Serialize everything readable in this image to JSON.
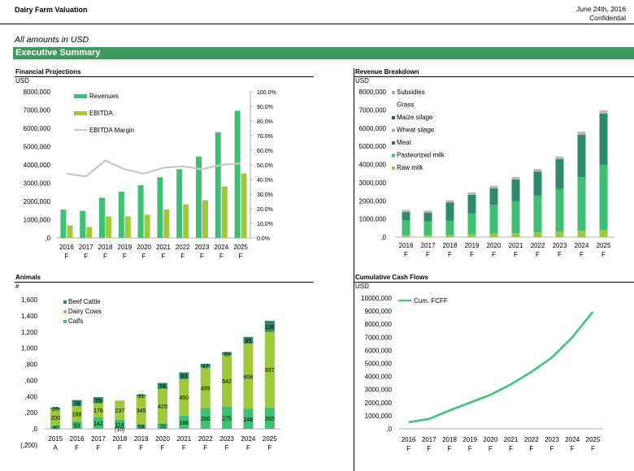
{
  "header": {
    "title": "Dairy Farm Valuation",
    "date": "June 24th, 2016",
    "confidential": "Confidential",
    "units_note": "All amounts in USD",
    "section": "Executive Summary"
  },
  "colors": {
    "green": "#3fbf73",
    "lime": "#9ec93c",
    "dark": "#2e8b6a",
    "grey": "#c8c8c8",
    "banner": "#3c9a5f",
    "line": "#4cc382"
  },
  "chart_data": [
    {
      "id": "financial",
      "type": "bar",
      "title": "Financial Projections",
      "ylabel": "USD",
      "categories": [
        "2016 F",
        "2017 F",
        "2018 F",
        "2019 F",
        "2020 F",
        "2021 F",
        "2022 F",
        "2023 F",
        "2024 F",
        "2025 F"
      ],
      "series": [
        {
          "name": "Revenues",
          "values": [
            1550000,
            1480000,
            2200000,
            2530000,
            2880000,
            3320000,
            3760000,
            4450000,
            5780000,
            6960000
          ]
        },
        {
          "name": "EBITDA",
          "values": [
            680000,
            600000,
            1180000,
            1180000,
            1270000,
            1560000,
            1850000,
            2060000,
            2820000,
            3530000
          ]
        }
      ],
      "line": {
        "name": "EBITDA Margin",
        "values": [
          44,
          42,
          53,
          47,
          44,
          48,
          49,
          47,
          50,
          51
        ]
      },
      "ylim": [
        0,
        8000000
      ],
      "yticks": [
        "8000,000",
        "7000,000",
        "6000,000",
        "5000,000",
        "4000,000",
        "3000,000",
        "2000,000",
        "1000,000",
        ",0"
      ],
      "y2ticks": [
        "100.0%",
        "90.0%",
        "80.0%",
        "70.0%",
        "60.0%",
        "50.0%",
        "40.0%",
        "30.0%",
        "20.0%",
        "10.0%",
        "0.0%"
      ],
      "y2lim": [
        0,
        100
      ]
    },
    {
      "id": "revenue",
      "type": "bar",
      "title": "Revenue Breakdown",
      "ylabel": "USD",
      "stacked": true,
      "categories": [
        "2016 F",
        "2017 F",
        "2018 F",
        "2019 F",
        "2020 F",
        "2021 F",
        "2022 F",
        "2023 F",
        "2024 F",
        "2025 F"
      ],
      "legend": [
        "Subsidies",
        "Grass",
        "Maize silage",
        "Wheat silage",
        "Meat",
        "Pasteurized milk",
        "Raw milk"
      ],
      "series": [
        {
          "name": "Raw milk",
          "values": [
            100000,
            100000,
            120000,
            150000,
            200000,
            220000,
            260000,
            300000,
            350000,
            400000
          ]
        },
        {
          "name": "Pasteurized milk",
          "values": [
            820000,
            760000,
            780000,
            1150000,
            1570000,
            1750000,
            2030000,
            2350000,
            2950000,
            3580000
          ]
        },
        {
          "name": "Meat",
          "values": [
            460000,
            480000,
            1000000,
            1030000,
            920000,
            1200000,
            1310000,
            1640000,
            2330000,
            2820000
          ]
        },
        {
          "name": "Subsidies",
          "values": [
            120000,
            120000,
            130000,
            130000,
            140000,
            140000,
            150000,
            150000,
            170000,
            180000
          ]
        }
      ],
      "ylim": [
        0,
        8000000
      ],
      "yticks": [
        "8000,000",
        "7000,000",
        "6000,000",
        "5000,000",
        "4000,000",
        "3000,000",
        "2000,000",
        "1000,000",
        ",0"
      ]
    },
    {
      "id": "animals",
      "type": "bar",
      "title": "Animals",
      "ylabel": "#",
      "stacked": true,
      "categories": [
        "2015 A",
        "2016 F",
        "2017 F",
        "2018 F",
        "2019 F",
        "2020 F",
        "2021 F",
        "2022 F",
        "2023 F",
        "2024 F",
        "2025 F"
      ],
      "series": [
        {
          "name": "Calfs",
          "values": [
            40,
            93,
            142,
            114,
            58,
            70,
            166,
            260,
            275,
            248,
            265
          ],
          "labels": [
            "40",
            "93",
            "142",
            "114",
            "58",
            "70",
            "166",
            "260",
            "275",
            "248",
            "265"
          ]
        },
        {
          "name": "Dairy Cows",
          "values": [
            200,
            188,
            176,
            237,
            345,
            425,
            450,
            499,
            642,
            806,
            937
          ],
          "labels": [
            "200",
            "188",
            "176",
            "237",
            "345",
            "425",
            "450",
            "499",
            "642",
            "806",
            "937"
          ]
        },
        {
          "name": "Beef Cattle",
          "values": [
            25,
            76,
            75,
            0,
            21,
            74,
            83,
            47,
            33,
            85,
            136
          ],
          "labels": [
            "25",
            "76",
            "75",
            "",
            "21",
            "74",
            "83",
            "47",
            "33",
            "85",
            "136"
          ]
        }
      ],
      "extra_label": "(10)",
      "ylim": [
        -200,
        1600
      ],
      "yticks": [
        "1,600",
        "1,400",
        "1,200",
        "1,000",
        ",800",
        ",600",
        ",400",
        ",200",
        ",0",
        "(,200)"
      ]
    },
    {
      "id": "cashflow",
      "type": "line",
      "title": "Cumulative Cash Flows",
      "ylabel": "USD",
      "categories": [
        "2016 F",
        "2017 F",
        "2018 F",
        "2019 F",
        "2020 F",
        "2021 F",
        "2022 F",
        "2023 F",
        "2024 F",
        "2025 F"
      ],
      "series": [
        {
          "name": "Cum. FCFF",
          "values": [
            500000,
            750000,
            1400000,
            2000000,
            2600000,
            3400000,
            4350000,
            5450000,
            7000000,
            8950000
          ]
        }
      ],
      "ylim": [
        0,
        10000000
      ],
      "yticks": [
        "10000,000",
        "9000,000",
        "8000,000",
        "7000,000",
        "6000,000",
        "5000,000",
        "4000,000",
        "3000,000",
        "2000,000",
        "1000,000",
        ",0"
      ]
    }
  ]
}
